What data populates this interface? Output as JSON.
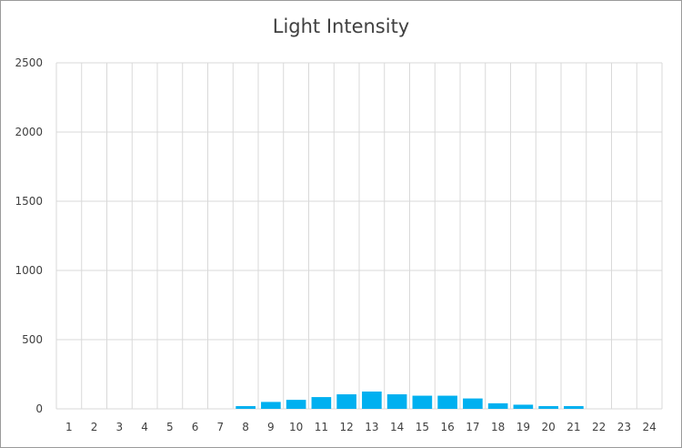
{
  "chart_data": {
    "type": "bar",
    "title": "Light Intensity",
    "xlabel": "",
    "ylabel": "",
    "categories": [
      "1",
      "2",
      "3",
      "4",
      "5",
      "6",
      "7",
      "8",
      "9",
      "10",
      "11",
      "12",
      "13",
      "14",
      "15",
      "16",
      "17",
      "18",
      "19",
      "20",
      "21",
      "22",
      "23",
      "24"
    ],
    "values": [
      0,
      0,
      0,
      0,
      0,
      0,
      0,
      20,
      50,
      65,
      85,
      105,
      125,
      105,
      95,
      95,
      75,
      40,
      30,
      20,
      20,
      0,
      0,
      0
    ],
    "ylim": [
      0,
      2500
    ],
    "yticks": [
      0,
      500,
      1000,
      1500,
      2000,
      2500
    ],
    "grid": true,
    "bar_color": "#00B0F0"
  }
}
